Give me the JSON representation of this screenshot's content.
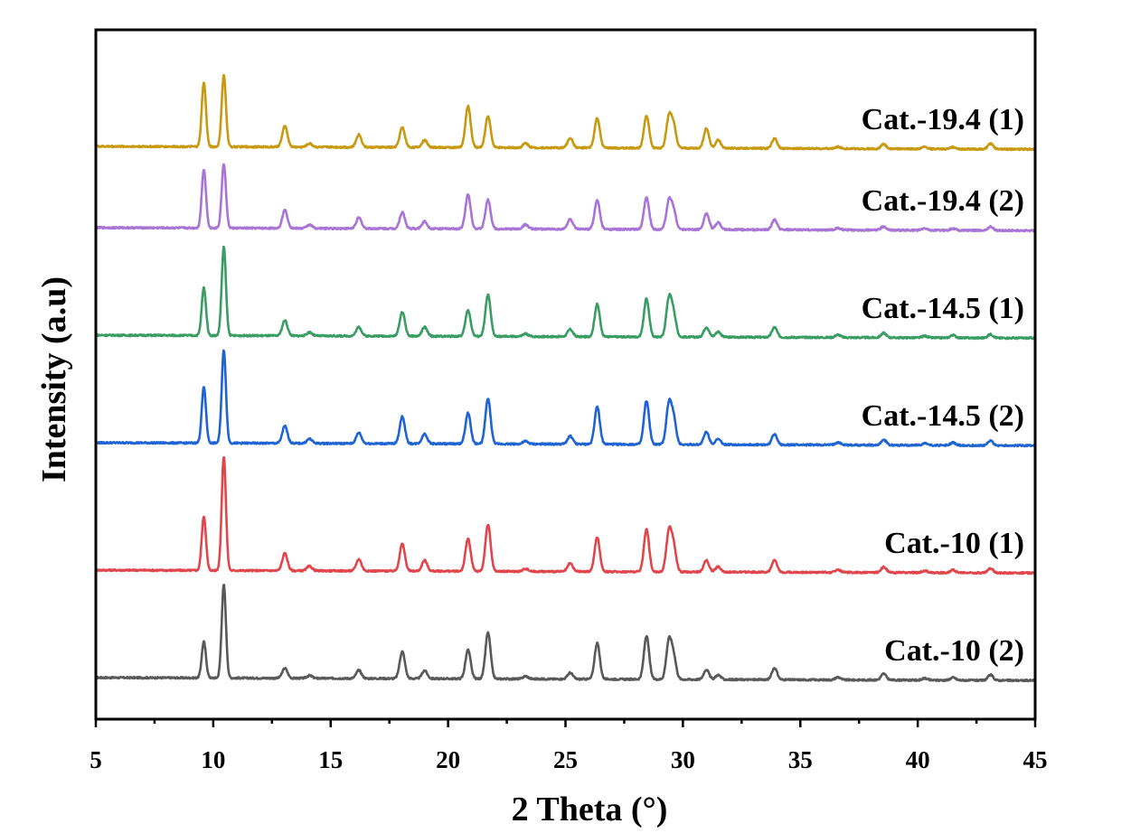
{
  "chart_data": {
    "type": "line",
    "xlabel": "2  Theta (°)",
    "ylabel": "Intensity (a.u)",
    "xlim": [
      5,
      45
    ],
    "x_ticks": [
      5,
      10,
      15,
      20,
      25,
      30,
      35,
      40,
      45
    ],
    "x_tick_labels": [
      "5",
      "10",
      "15",
      "20",
      "25",
      "30",
      "35",
      "40",
      "45"
    ],
    "y_ticks": [],
    "grid": false,
    "legend": "inline labels at right end of each curve",
    "offset_stacked": true,
    "peaks_2theta": [
      9.6,
      10.45,
      13.05,
      14.1,
      16.2,
      18.05,
      19.0,
      20.85,
      21.7,
      23.3,
      25.2,
      26.35,
      28.45,
      29.4,
      29.6,
      31.0,
      31.5,
      33.9,
      36.6,
      38.55,
      40.3,
      41.5,
      43.1
    ],
    "series": [
      {
        "name": "Cat.-10 (2)",
        "color": "#595959",
        "baseline": 0,
        "peaks": [
          [
            9.6,
            40
          ],
          [
            10.45,
            103
          ],
          [
            13.05,
            11
          ],
          [
            14.1,
            3
          ],
          [
            16.2,
            9
          ],
          [
            18.05,
            30
          ],
          [
            19.0,
            9
          ],
          [
            20.85,
            32
          ],
          [
            21.7,
            51
          ],
          [
            23.3,
            3
          ],
          [
            25.2,
            7
          ],
          [
            26.35,
            40
          ],
          [
            28.45,
            48
          ],
          [
            29.4,
            41
          ],
          [
            29.6,
            25
          ],
          [
            31.0,
            11
          ],
          [
            31.5,
            5
          ],
          [
            33.9,
            13
          ],
          [
            36.6,
            3
          ],
          [
            38.55,
            7
          ],
          [
            40.3,
            2
          ],
          [
            41.5,
            3
          ],
          [
            43.1,
            6
          ]
        ]
      },
      {
        "name": "Cat.-10 (1)",
        "color": "#e0474c",
        "baseline": 119,
        "peaks": [
          [
            9.6,
            60
          ],
          [
            10.45,
            126
          ],
          [
            13.05,
            19
          ],
          [
            14.1,
            5
          ],
          [
            16.2,
            13
          ],
          [
            18.05,
            30
          ],
          [
            19.0,
            12
          ],
          [
            20.85,
            36
          ],
          [
            21.7,
            52
          ],
          [
            23.3,
            3
          ],
          [
            25.2,
            9
          ],
          [
            26.35,
            38
          ],
          [
            28.45,
            47
          ],
          [
            29.4,
            43
          ],
          [
            29.6,
            28
          ],
          [
            31.0,
            13
          ],
          [
            31.5,
            6
          ],
          [
            33.9,
            13
          ],
          [
            36.6,
            3
          ],
          [
            38.55,
            6
          ],
          [
            40.3,
            2
          ],
          [
            41.5,
            3
          ],
          [
            43.1,
            5
          ]
        ]
      },
      {
        "name": "Cat.-14.5 (2)",
        "color": "#1f64d3",
        "baseline": 260,
        "peaks": [
          [
            9.6,
            62
          ],
          [
            10.45,
            103
          ],
          [
            13.05,
            19
          ],
          [
            14.1,
            5
          ],
          [
            16.2,
            12
          ],
          [
            18.05,
            30
          ],
          [
            19.0,
            11
          ],
          [
            20.85,
            34
          ],
          [
            21.7,
            50
          ],
          [
            23.3,
            3
          ],
          [
            25.2,
            9
          ],
          [
            26.35,
            42
          ],
          [
            28.45,
            48
          ],
          [
            29.4,
            43
          ],
          [
            29.6,
            28
          ],
          [
            31.0,
            14
          ],
          [
            31.5,
            6
          ],
          [
            33.9,
            12
          ],
          [
            36.6,
            3
          ],
          [
            38.55,
            6
          ],
          [
            40.3,
            2
          ],
          [
            41.5,
            3
          ],
          [
            43.1,
            5
          ]
        ]
      },
      {
        "name": "Cat.-14.5 (1)",
        "color": "#3a9e64",
        "baseline": 379,
        "peaks": [
          [
            9.6,
            53
          ],
          [
            10.45,
            98
          ],
          [
            13.05,
            17
          ],
          [
            14.1,
            4
          ],
          [
            16.2,
            10
          ],
          [
            18.05,
            27
          ],
          [
            19.0,
            10
          ],
          [
            20.85,
            29
          ],
          [
            21.7,
            46
          ],
          [
            23.3,
            3
          ],
          [
            25.2,
            8
          ],
          [
            26.35,
            36
          ],
          [
            28.45,
            42
          ],
          [
            29.4,
            41
          ],
          [
            29.6,
            25
          ],
          [
            31.0,
            11
          ],
          [
            31.5,
            6
          ],
          [
            33.9,
            11
          ],
          [
            36.6,
            3
          ],
          [
            38.55,
            5
          ],
          [
            40.3,
            2
          ],
          [
            41.5,
            3
          ],
          [
            43.1,
            4
          ]
        ]
      },
      {
        "name": "Cat.-19.4 (2)",
        "color": "#a874d6",
        "baseline": 498,
        "peaks": [
          [
            9.6,
            65
          ],
          [
            10.45,
            71
          ],
          [
            13.05,
            20
          ],
          [
            14.1,
            4
          ],
          [
            16.2,
            12
          ],
          [
            18.05,
            18
          ],
          [
            19.0,
            8
          ],
          [
            20.85,
            38
          ],
          [
            21.7,
            32
          ],
          [
            23.3,
            5
          ],
          [
            25.2,
            11
          ],
          [
            26.35,
            32
          ],
          [
            28.45,
            35
          ],
          [
            29.4,
            30
          ],
          [
            29.6,
            20
          ],
          [
            31.0,
            18
          ],
          [
            31.5,
            8
          ],
          [
            33.9,
            11
          ],
          [
            36.6,
            2
          ],
          [
            38.55,
            4
          ],
          [
            40.3,
            2
          ],
          [
            41.5,
            2
          ],
          [
            43.1,
            4
          ]
        ]
      },
      {
        "name": "Cat.-19.4 (1)",
        "color": "#c89a12",
        "baseline": 588,
        "peaks": [
          [
            9.6,
            71
          ],
          [
            10.45,
            79
          ],
          [
            13.05,
            23
          ],
          [
            14.1,
            4
          ],
          [
            16.2,
            14
          ],
          [
            18.05,
            22
          ],
          [
            19.0,
            8
          ],
          [
            20.85,
            46
          ],
          [
            21.7,
            35
          ],
          [
            23.3,
            5
          ],
          [
            25.2,
            11
          ],
          [
            26.35,
            33
          ],
          [
            28.45,
            36
          ],
          [
            29.4,
            33
          ],
          [
            29.6,
            24
          ],
          [
            31.0,
            22
          ],
          [
            31.5,
            9
          ],
          [
            33.9,
            11
          ],
          [
            36.6,
            2
          ],
          [
            38.55,
            5
          ],
          [
            40.3,
            2
          ],
          [
            41.5,
            2
          ],
          [
            43.1,
            6
          ]
        ]
      }
    ]
  }
}
